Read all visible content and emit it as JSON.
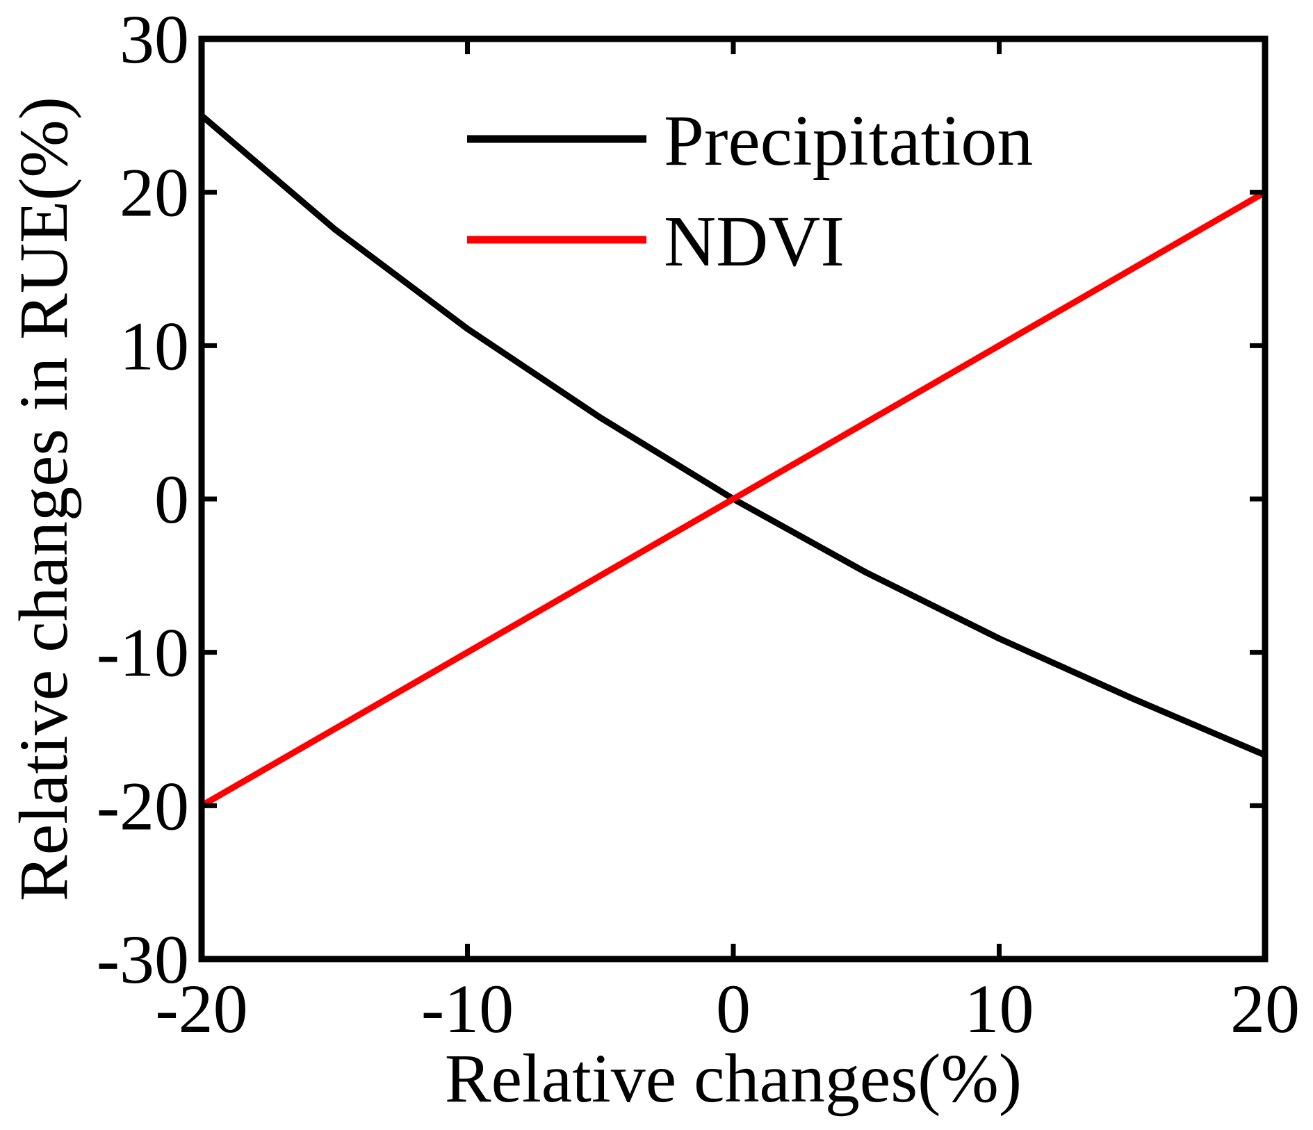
{
  "chart_data": {
    "type": "line",
    "title": "",
    "xlabel": "Relative changes(%)",
    "ylabel": "Relative changes in RUE(%)",
    "xlim": [
      -20,
      20
    ],
    "ylim": [
      -30,
      30
    ],
    "xticks": [
      -20,
      -10,
      0,
      10,
      20
    ],
    "yticks": [
      -30,
      -20,
      -10,
      0,
      10,
      20,
      30
    ],
    "xtick_labels": [
      "-20",
      "-10",
      "0",
      "10",
      "20"
    ],
    "ytick_labels": [
      "-30",
      "-20",
      "-10",
      "0",
      "10",
      "20",
      "30"
    ],
    "grid": false,
    "legend_position": "top-center",
    "series": [
      {
        "name": "Precipitation",
        "color": "#000000",
        "x": [
          -20,
          -15,
          -10,
          -5,
          0,
          5,
          10,
          15,
          20
        ],
        "y": [
          25,
          17.6,
          11.1,
          5.3,
          0,
          -4.8,
          -9.1,
          -13.0,
          -16.7
        ]
      },
      {
        "name": "NDVI",
        "color": "#ff0000",
        "x": [
          -20,
          -15,
          -10,
          -5,
          0,
          5,
          10,
          15,
          20
        ],
        "y": [
          -20,
          -15,
          -10,
          -5,
          0,
          5,
          10,
          15,
          20
        ]
      }
    ]
  }
}
